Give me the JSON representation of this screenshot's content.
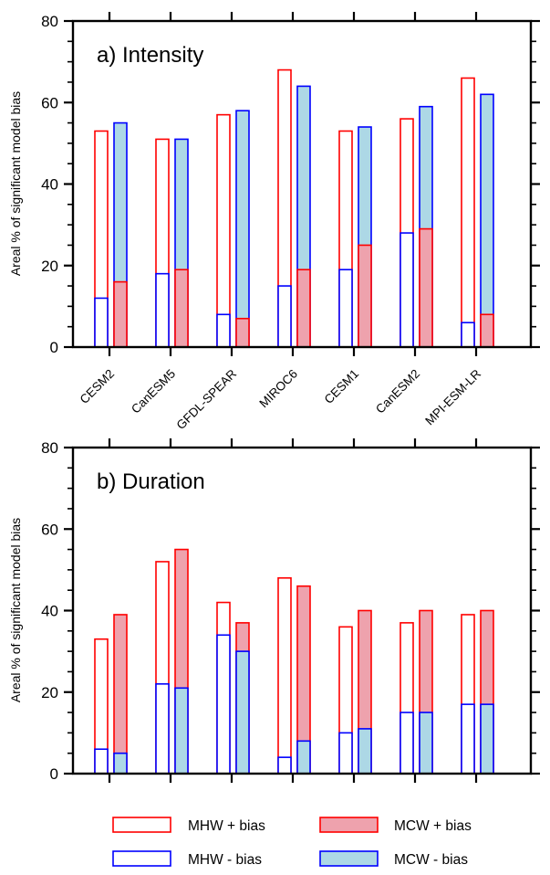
{
  "chart_data": [
    {
      "type": "bar",
      "title": "a) Intensity",
      "xlabel": "",
      "ylabel": "Areal % of significant model bias",
      "ylim": [
        0,
        80
      ],
      "yticks": [
        "0",
        "20",
        "40",
        "60",
        "80"
      ],
      "categories": [
        "CESM2",
        "CanESM5",
        "GFDL-SPEAR",
        "MIROC6",
        "CESM1",
        "CanESM2",
        "MPI-ESM-LR"
      ],
      "show_category_labels": true,
      "series": [
        {
          "name": "MHW + bias",
          "values": [
            53,
            51,
            57,
            68,
            53,
            56,
            66
          ]
        },
        {
          "name": "MHW - bias",
          "values": [
            12,
            18,
            8,
            15,
            19,
            28,
            6
          ]
        },
        {
          "name": "MCW + bias",
          "values": [
            16,
            19,
            7,
            19,
            25,
            29,
            8
          ]
        },
        {
          "name": "MCW - bias",
          "values": [
            55,
            51,
            58,
            64,
            54,
            59,
            62
          ]
        }
      ],
      "grid": false,
      "legend": "bottom"
    },
    {
      "type": "bar",
      "title": "b) Duration",
      "xlabel": "",
      "ylabel": "Areal % of significant model bias",
      "ylim": [
        0,
        80
      ],
      "yticks": [
        "0",
        "20",
        "40",
        "60",
        "80"
      ],
      "categories": [
        "CESM2",
        "CanESM5",
        "GFDL-SPEAR",
        "MIROC6",
        "CESM1",
        "CanESM2",
        "MPI-ESM-LR"
      ],
      "show_category_labels": false,
      "series": [
        {
          "name": "MHW + bias",
          "values": [
            33,
            52,
            42,
            48,
            36,
            37,
            39
          ]
        },
        {
          "name": "MHW - bias",
          "values": [
            6,
            22,
            34,
            4,
            10,
            15,
            17
          ]
        },
        {
          "name": "MCW + bias",
          "values": [
            39,
            55,
            37,
            46,
            40,
            40,
            40
          ]
        },
        {
          "name": "MCW - bias",
          "values": [
            5,
            21,
            30,
            8,
            11,
            15,
            17
          ]
        }
      ],
      "grid": false,
      "legend": "bottom"
    }
  ],
  "legend": {
    "items": [
      {
        "label": "MHW + bias",
        "stroke": "#ff0000",
        "fill": "#ffffff"
      },
      {
        "label": "MCW + bias",
        "stroke": "#ff0000",
        "fill": "#eea2ad"
      },
      {
        "label": "MHW - bias",
        "stroke": "#0000ff",
        "fill": "#ffffff"
      },
      {
        "label": "MCW - bias",
        "stroke": "#0000ff",
        "fill": "#add8e6"
      }
    ]
  },
  "colors": {
    "positive_stroke": "#ff0000",
    "negative_stroke": "#0000ff",
    "mcw_positive_fill": "#eea2ad",
    "mcw_negative_fill": "#add8e6",
    "mhw_fill": "#ffffff"
  }
}
